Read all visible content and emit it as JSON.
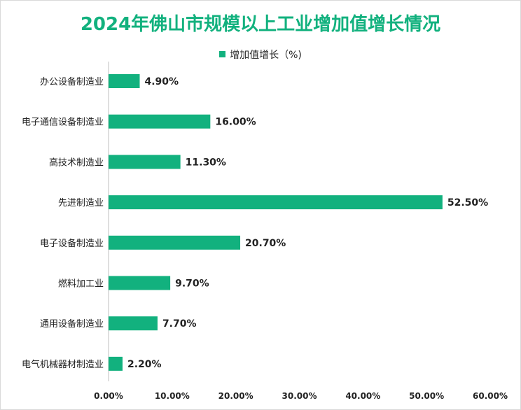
{
  "chart_data": {
    "type": "bar",
    "orientation": "horizontal",
    "title": "2024年佛山市规模以上工业增加值增长情况",
    "legend": "增加值增长（%)",
    "legend_position": "top",
    "categories": [
      "办公设备制造业",
      "电子通信设备制造业",
      "高技术制造业",
      "先进制造业",
      "电子设备制造业",
      "燃料加工业",
      "通用设备制造业",
      "电气机械器材制造业"
    ],
    "values": [
      4.9,
      16.0,
      11.3,
      52.5,
      20.7,
      9.7,
      7.7,
      2.2
    ],
    "value_labels": [
      "4.90%",
      "16.00%",
      "11.30%",
      "52.50%",
      "20.70%",
      "9.70%",
      "7.70%",
      "2.20%"
    ],
    "xlim": [
      0,
      60
    ],
    "xticks": [
      0,
      10,
      20,
      30,
      40,
      50,
      60
    ],
    "xtick_labels": [
      "0.00%",
      "10.00%",
      "20.00%",
      "30.00%",
      "40.00%",
      "50.00%",
      "60.00%"
    ],
    "grid": false,
    "bar_color": "#12b17e"
  }
}
